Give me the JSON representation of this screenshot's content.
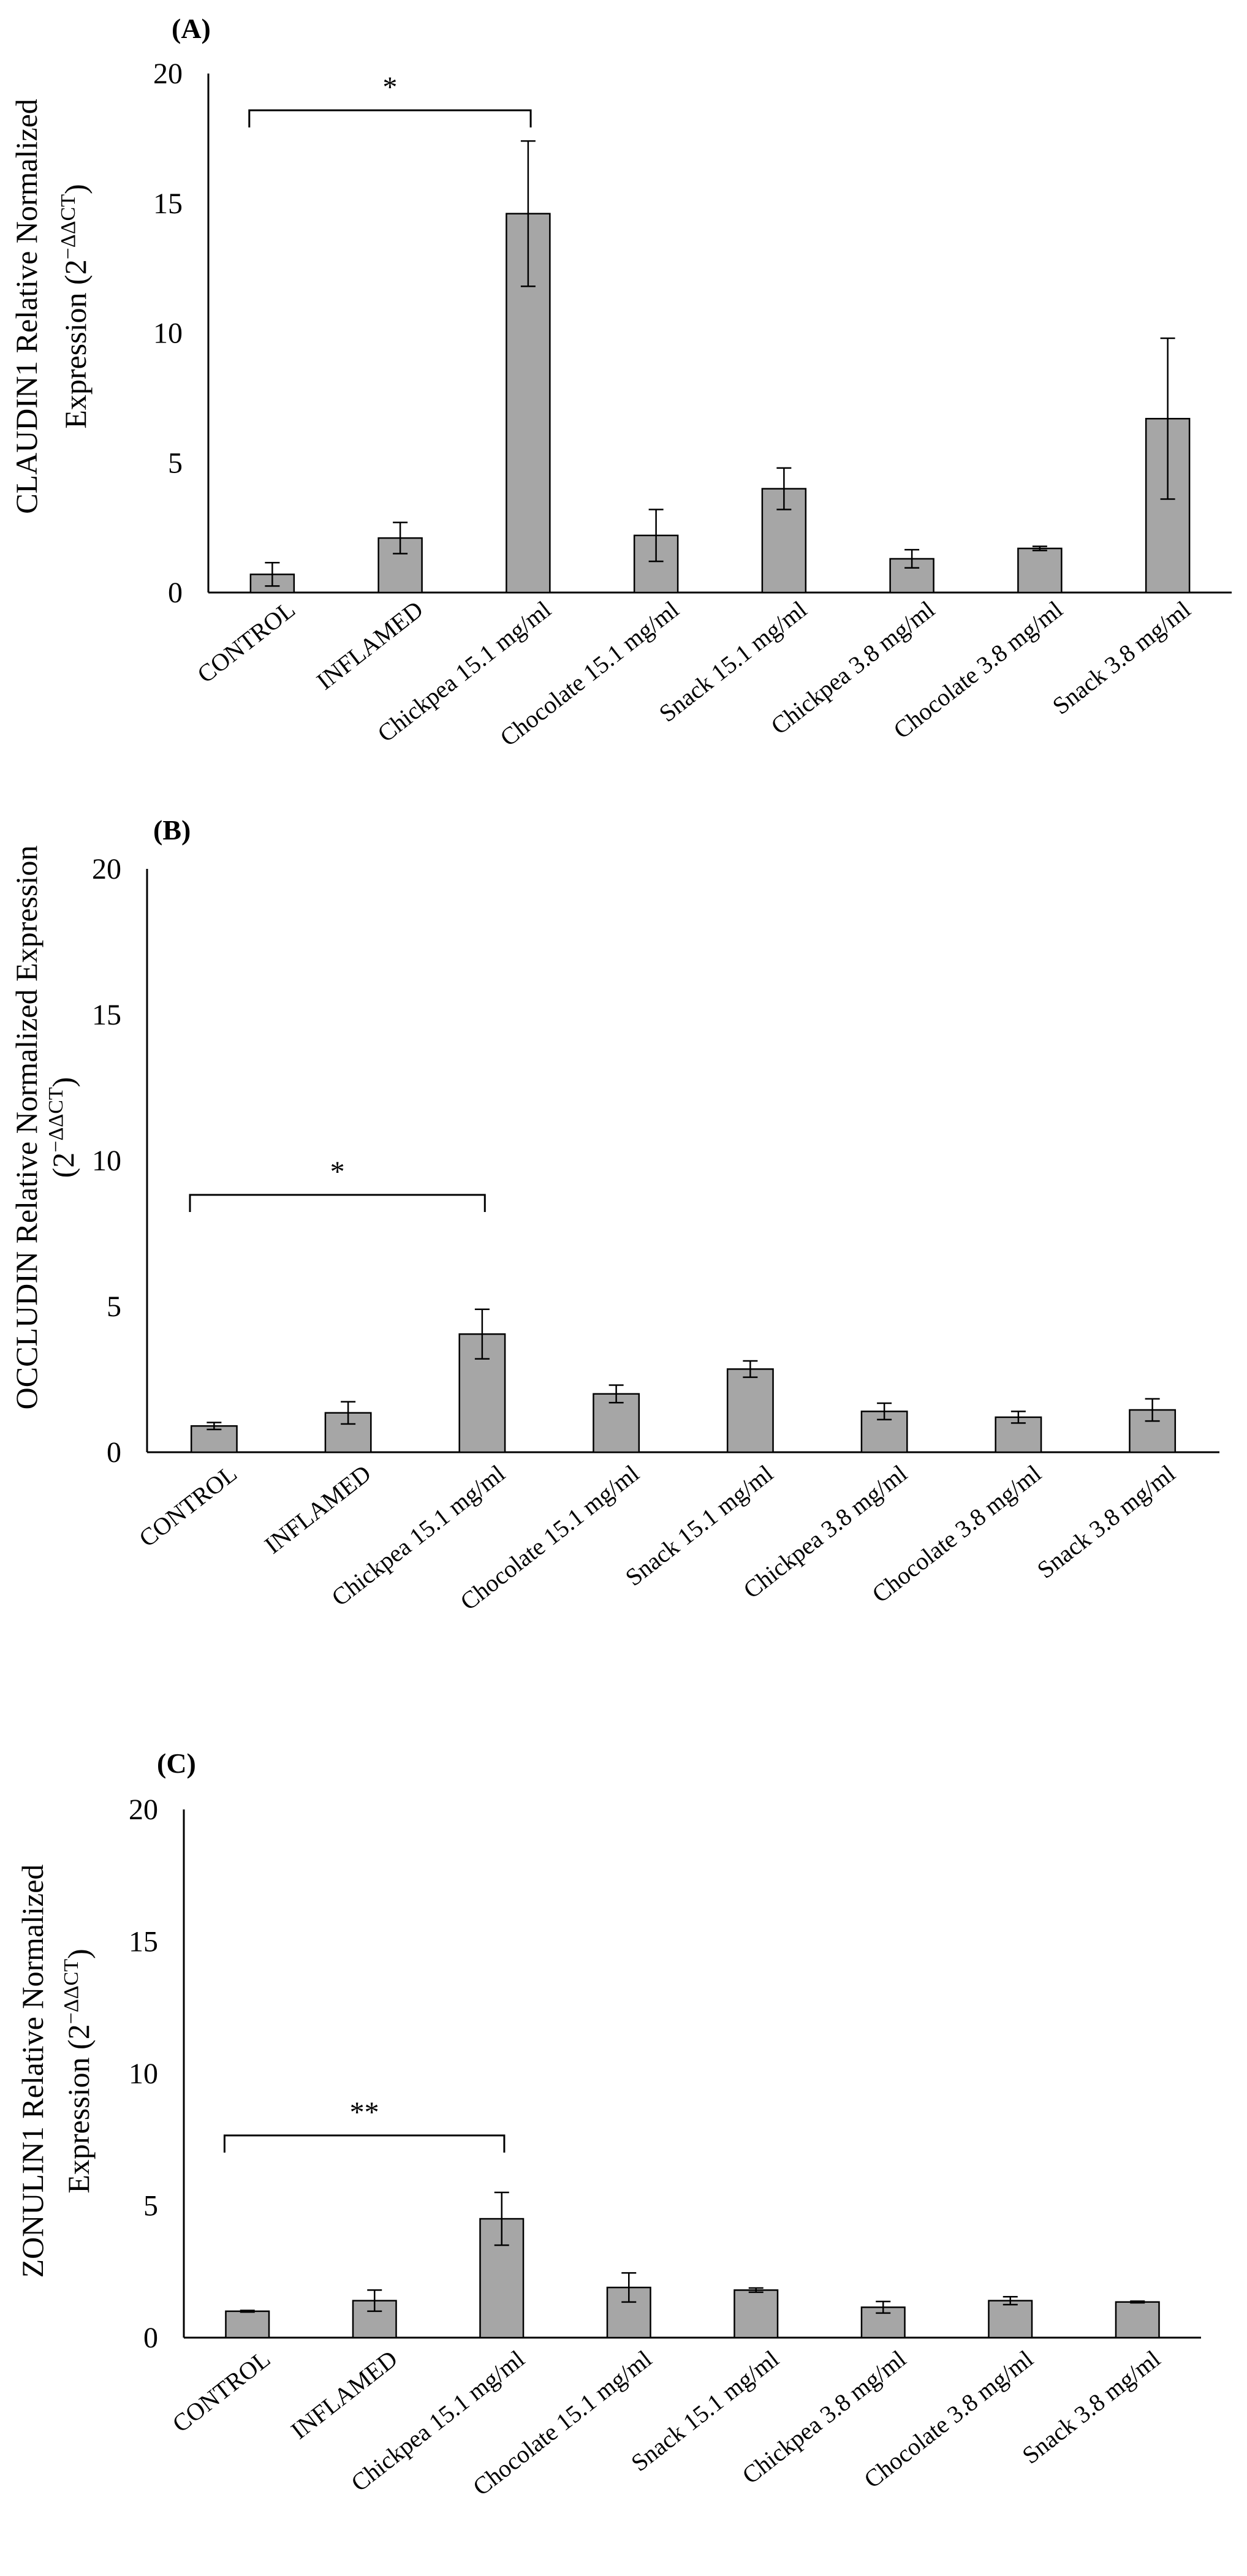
{
  "figure": {
    "categories": [
      "CONTROL",
      "INFLAMED",
      "Chickpea 15.1 mg/ml",
      "Chocolate 15.1 mg/ml",
      "Snack 15.1 mg/ml",
      "Chickpea 3.8 mg/ml",
      "Chocolate  3.8 mg/ml",
      "Snack  3.8 mg/ml"
    ],
    "y_ticks": [
      "0",
      "5",
      "10",
      "15",
      "20"
    ]
  },
  "chart_data": [
    {
      "type": "bar",
      "panel_label": "(A)",
      "ylabel_line1": "CLAUDIN1 Relative Normalized",
      "ylabel_line2": "Expression (2",
      "ylabel_sup": "−ΔΔCT",
      "ylabel_close": ")",
      "categories": [
        "CONTROL",
        "INFLAMED",
        "Chickpea 15.1 mg/ml",
        "Chocolate 15.1 mg/ml",
        "Snack 15.1 mg/ml",
        "Chickpea 3.8 mg/ml",
        "Chocolate  3.8 mg/ml",
        "Snack  3.8 mg/ml"
      ],
      "values": [
        0.7,
        2.1,
        14.6,
        2.2,
        4.0,
        1.3,
        1.7,
        6.7
      ],
      "errors": [
        0.45,
        0.6,
        2.8,
        1.0,
        0.8,
        0.35,
        0.08,
        3.1
      ],
      "ylim": [
        0,
        20
      ],
      "significance": {
        "from": 0,
        "to": 2,
        "label": "*"
      },
      "bar_color": "#a6a6a6"
    },
    {
      "type": "bar",
      "panel_label": "(B)",
      "ylabel_line1": "OCCLUDIN Relative Normalized Expression",
      "ylabel_line2": "(2",
      "ylabel_sup": "−ΔΔCT",
      "ylabel_close": ")",
      "categories": [
        "CONTROL",
        "INFLAMED",
        "Chickpea 15.1 mg/ml",
        "Chocolate 15.1 mg/ml",
        "Snack 15.1 mg/ml",
        "Chickpea 3.8 mg/ml",
        "Chocolate  3.8 mg/ml",
        "Snack  3.8 mg/ml"
      ],
      "values": [
        0.9,
        1.35,
        4.05,
        2.0,
        2.85,
        1.4,
        1.2,
        1.45
      ],
      "errors": [
        0.12,
        0.38,
        0.85,
        0.3,
        0.28,
        0.28,
        0.2,
        0.38
      ],
      "ylim": [
        0,
        20
      ],
      "significance": {
        "from": 0,
        "to": 2,
        "label": "*"
      },
      "bar_color": "#a6a6a6"
    },
    {
      "type": "bar",
      "panel_label": "(C)",
      "ylabel_line1": "ZONULIN1 Relative Normalized",
      "ylabel_line2": "Expression (2",
      "ylabel_sup": "−ΔΔCT",
      "ylabel_close": ")",
      "categories": [
        "CONTROL",
        "INFLAMED",
        "Chickpea 15.1 mg/ml",
        "Chocolate 15.1 mg/ml",
        "Snack 15.1 mg/ml",
        "Chickpea 3.8 mg/ml",
        "Chocolate  3.8 mg/ml",
        "Snack  3.8 mg/ml"
      ],
      "values": [
        1.0,
        1.4,
        4.5,
        1.9,
        1.8,
        1.15,
        1.4,
        1.35
      ],
      "errors": [
        0.03,
        0.4,
        1.0,
        0.55,
        0.08,
        0.22,
        0.15,
        0.03
      ],
      "ylim": [
        0,
        20
      ],
      "significance": {
        "from": 0,
        "to": 2,
        "label": "**"
      },
      "bar_color": "#a6a6a6"
    }
  ]
}
